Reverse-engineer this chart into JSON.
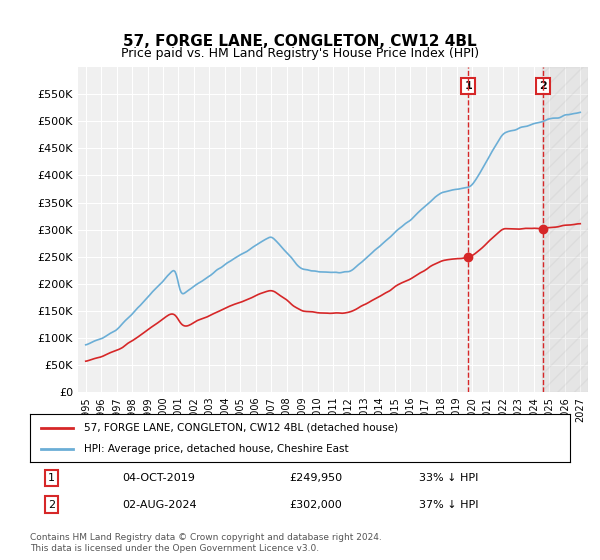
{
  "title": "57, FORGE LANE, CONGLETON, CW12 4BL",
  "subtitle": "Price paid vs. HM Land Registry's House Price Index (HPI)",
  "legend_line1": "57, FORGE LANE, CONGLETON, CW12 4BL (detached house)",
  "legend_line2": "HPI: Average price, detached house, Cheshire East",
  "sale1_date": "04-OCT-2019",
  "sale1_price": "£249,950",
  "sale1_pct": "33% ↓ HPI",
  "sale2_date": "02-AUG-2024",
  "sale2_price": "£302,000",
  "sale2_pct": "37% ↓ HPI",
  "footer": "Contains HM Land Registry data © Crown copyright and database right 2024.\nThis data is licensed under the Open Government Licence v3.0.",
  "hpi_color": "#6baed6",
  "sale_color": "#d62728",
  "vline_color": "#d62728",
  "background_color": "#ffffff",
  "plot_bg_color": "#f0f0f0",
  "ylabel": "",
  "ylim": [
    0,
    600000
  ],
  "yticks": [
    0,
    50000,
    100000,
    150000,
    200000,
    250000,
    300000,
    350000,
    400000,
    450000,
    500000,
    550000
  ],
  "ytick_labels": [
    "£0",
    "£50K",
    "£100K",
    "£150K",
    "£200K",
    "£250K",
    "£300K",
    "£350K",
    "£400K",
    "£450K",
    "£500K",
    "£550K"
  ],
  "sale1_x": 2019.75,
  "sale1_y": 249950,
  "sale2_x": 2024.58,
  "sale2_y": 302000,
  "hpi_start_year": 1995,
  "hpi_end_year": 2027,
  "xlim": [
    1994.5,
    2027.5
  ],
  "xtick_years": [
    1995,
    1996,
    1997,
    1998,
    1999,
    2000,
    2001,
    2002,
    2003,
    2004,
    2005,
    2006,
    2007,
    2008,
    2009,
    2010,
    2011,
    2012,
    2013,
    2014,
    2015,
    2016,
    2017,
    2018,
    2019,
    2020,
    2021,
    2022,
    2023,
    2024,
    2025,
    2026,
    2027
  ]
}
